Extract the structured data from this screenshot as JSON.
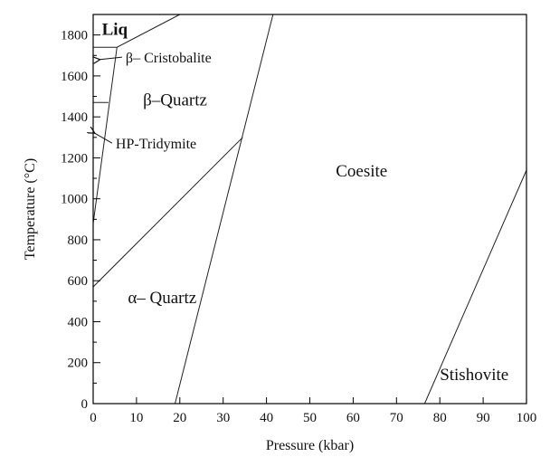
{
  "chart_data": {
    "type": "line",
    "xlabel": "Pressure (kbar)",
    "ylabel": "Temperature (°C)",
    "xlim": [
      0,
      100
    ],
    "ylim": [
      0,
      1900
    ],
    "x_ticks": [
      0,
      10,
      20,
      30,
      40,
      50,
      60,
      70,
      80,
      90,
      100
    ],
    "y_ticks": [
      0,
      200,
      400,
      600,
      800,
      1000,
      1200,
      1400,
      1600,
      1800
    ],
    "minor_y_step": 100,
    "grid": false,
    "boundaries": [
      {
        "points": [
          [
            0,
            1740
          ],
          [
            5.5,
            1740
          ],
          [
            20,
            1900
          ]
        ]
      },
      {
        "points": [
          [
            0,
            880
          ],
          [
            5.5,
            1740
          ]
        ]
      },
      {
        "points": [
          [
            0,
            1470
          ],
          [
            3.5,
            1470
          ]
        ]
      },
      {
        "points": [
          [
            0,
            570
          ],
          [
            34.5,
            1300
          ]
        ]
      },
      {
        "points": [
          [
            18.9,
            0
          ],
          [
            41.5,
            1900
          ]
        ]
      },
      {
        "points": [
          [
            76.5,
            0
          ],
          [
            100,
            1140
          ]
        ]
      }
    ],
    "annotations": [
      {
        "text": "Liq",
        "x": 2,
        "y": 1800,
        "style": "bold"
      },
      {
        "text": "β– Cristobalite",
        "x": 7.5,
        "y": 1665,
        "arrow_to": [
          1.6,
          1680
        ]
      },
      {
        "text": "β–Quartz",
        "x": 11.5,
        "y": 1455
      },
      {
        "text": "HP-Tridymite",
        "x": 5.2,
        "y": 1245,
        "arrow_to": [
          0.4,
          1320
        ]
      },
      {
        "text": "Coesite",
        "x": 56,
        "y": 1110
      },
      {
        "text": "α– Quartz",
        "x": 8,
        "y": 490
      },
      {
        "text": "Stishovite",
        "x": 80,
        "y": 115
      }
    ]
  }
}
